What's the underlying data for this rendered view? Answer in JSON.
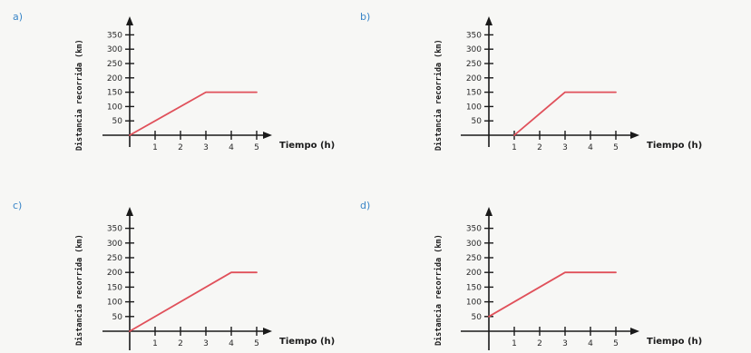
{
  "panels": [
    {
      "label": "a)"
    },
    {
      "label": "b)"
    },
    {
      "label": "c)"
    },
    {
      "label": "d)"
    }
  ],
  "colors": {
    "line": "#e0505a",
    "axis": "#1a1a1a",
    "label": "#3a86c8",
    "text": "#1a1a1a"
  },
  "chart_data": [
    {
      "type": "line",
      "xlabel": "Tiempo (h)",
      "ylabel": "Distancia recorrida (km)",
      "x_ticks": [
        "1",
        "2",
        "3",
        "4",
        "5"
      ],
      "y_ticks": [
        "50",
        "100",
        "150",
        "200",
        "250",
        "300",
        "350"
      ],
      "xlim": [
        0,
        5
      ],
      "ylim": [
        0,
        350
      ],
      "series": [
        {
          "x": [
            0,
            3,
            5
          ],
          "y": [
            0,
            150,
            150
          ]
        }
      ]
    },
    {
      "type": "line",
      "xlabel": "Tiempo (h)",
      "ylabel": "Distancia recorrida (km)",
      "x_ticks": [
        "1",
        "2",
        "3",
        "4",
        "5"
      ],
      "y_ticks": [
        "50",
        "100",
        "150",
        "200",
        "250",
        "300",
        "350"
      ],
      "xlim": [
        0,
        5
      ],
      "ylim": [
        0,
        350
      ],
      "series": [
        {
          "x": [
            1,
            3,
            5
          ],
          "y": [
            0,
            150,
            150
          ]
        }
      ]
    },
    {
      "type": "line",
      "xlabel": "Tiempo (h)",
      "ylabel": "Distancia recorrida (km)",
      "x_ticks": [
        "1",
        "2",
        "3",
        "4",
        "5"
      ],
      "y_ticks": [
        "50",
        "100",
        "150",
        "200",
        "250",
        "300",
        "350"
      ],
      "xlim": [
        0,
        5
      ],
      "ylim": [
        0,
        350
      ],
      "series": [
        {
          "x": [
            0,
            4,
            5
          ],
          "y": [
            0,
            200,
            200
          ]
        }
      ]
    },
    {
      "type": "line",
      "xlabel": "Tiempo (h)",
      "ylabel": "Distancia recorrida (km)",
      "x_ticks": [
        "1",
        "2",
        "3",
        "4",
        "5"
      ],
      "y_ticks": [
        "50",
        "100",
        "150",
        "200",
        "250",
        "300",
        "350"
      ],
      "xlim": [
        0,
        5
      ],
      "ylim": [
        0,
        350
      ],
      "series": [
        {
          "x": [
            0,
            3,
            5
          ],
          "y": [
            50,
            200,
            200
          ]
        }
      ]
    }
  ]
}
